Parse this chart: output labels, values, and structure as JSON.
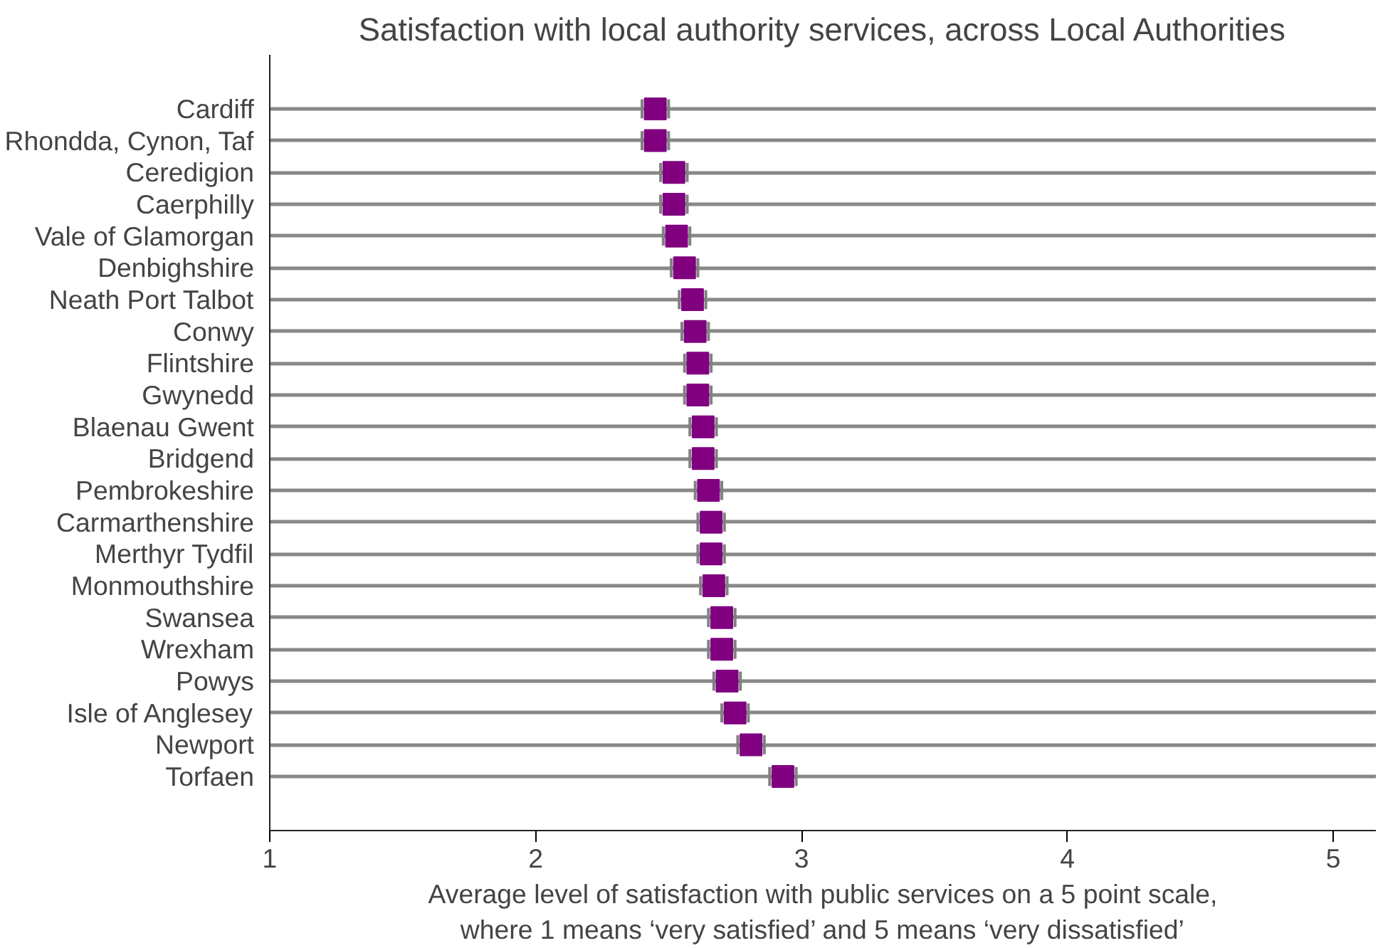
{
  "chart_data": {
    "type": "scatter",
    "orientation": "horizontal",
    "title": "Satisfaction with local authority services, across Local Authorities",
    "xlabel": "Average level of satisfaction with public services on a 5 point scale,\nwhere 1 means ‘very satisfied’ and 5 means ‘very dissatisfied’",
    "categories": [
      "Cardiff",
      "Rhondda, Cynon, Taf",
      "Ceredigion",
      "Caerphilly",
      "Vale of Glamorgan",
      "Denbighshire",
      "Neath Port Talbot",
      "Conwy",
      "Flintshire",
      "Gwynedd",
      "Blaenau Gwent",
      "Bridgend",
      "Pembrokeshire",
      "Carmarthenshire",
      "Merthyr Tydfil",
      "Monmouthshire",
      "Swansea",
      "Wrexham",
      "Powys",
      "Isle of Anglesey",
      "Newport",
      "Torfaen"
    ],
    "series": [
      {
        "color": "#800080",
        "values": [
          2.45,
          2.45,
          2.52,
          2.52,
          2.53,
          2.56,
          2.59,
          2.6,
          2.61,
          2.61,
          2.63,
          2.63,
          2.65,
          2.66,
          2.66,
          2.67,
          2.7,
          2.7,
          2.72,
          2.75,
          2.81,
          2.93
        ],
        "errors": [
          0.05,
          0.05,
          0.05,
          0.05,
          0.05,
          0.05,
          0.05,
          0.05,
          0.05,
          0.05,
          0.05,
          0.05,
          0.05,
          0.05,
          0.05,
          0.05,
          0.05,
          0.05,
          0.05,
          0.05,
          0.05,
          0.05
        ]
      }
    ],
    "xlim": [
      1,
      5.16
    ],
    "xticks": [
      1,
      2,
      3,
      4,
      5
    ],
    "grid": "y",
    "marker": "square"
  }
}
